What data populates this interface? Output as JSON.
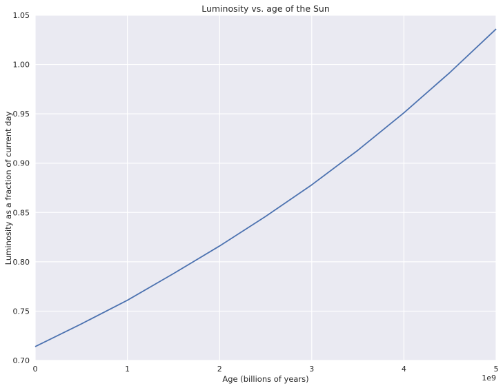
{
  "chart_data": {
    "type": "line",
    "title": "Luminosity vs. age of the Sun",
    "xlabel": "Age (billions of years)",
    "ylabel": "Luminosity as a fraction of current day",
    "x_offset_text": "1e9",
    "xlim": [
      0,
      5
    ],
    "ylim": [
      0.7,
      1.05
    ],
    "x_ticks": [
      0,
      1,
      2,
      3,
      4,
      5
    ],
    "x_tick_labels": [
      "0",
      "1",
      "2",
      "3",
      "4",
      "5"
    ],
    "y_ticks": [
      0.7,
      0.75,
      0.8,
      0.85,
      0.9,
      0.95,
      1.0,
      1.05
    ],
    "y_tick_labels": [
      "0.70",
      "0.75",
      "0.80",
      "0.85",
      "0.90",
      "0.95",
      "1.00",
      "1.05"
    ],
    "grid": true,
    "series": [
      {
        "color": "#4c72b0",
        "x": [
          0,
          0.5,
          1.0,
          1.5,
          2.0,
          2.5,
          3.0,
          3.5,
          4.0,
          4.5,
          5.0
        ],
        "y": [
          0.714,
          0.737,
          0.761,
          0.788,
          0.816,
          0.846,
          0.878,
          0.913,
          0.951,
          0.992,
          1.036
        ]
      }
    ],
    "colors": {
      "plot_background": "#eaeaf2",
      "line": "#4c72b0",
      "text": "#262626"
    }
  }
}
